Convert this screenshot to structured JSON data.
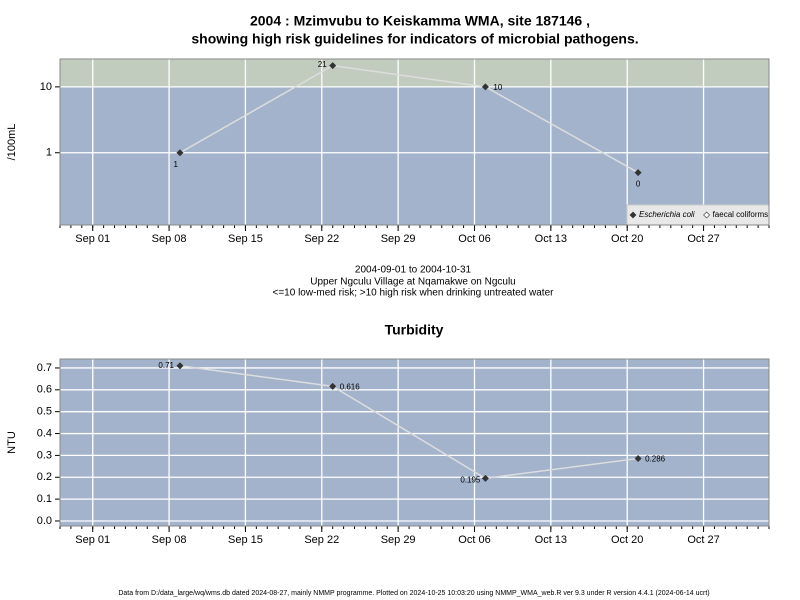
{
  "chart_data": [
    {
      "type": "line",
      "title": "2004 : Mzimvubu to Keiskamma WMA, site 187146 ,",
      "subtitle": "showing high risk guidelines for indicators of microbial pathogens.",
      "y_label": "/100mL",
      "log_scale": true,
      "ylim": [
        0.08,
        26.5
      ],
      "yticks": [
        1,
        10
      ],
      "threshold": 10,
      "below_color": "#a3b3cc",
      "above_color": "#c1ccbf",
      "grid": true,
      "xlim": [
        "2004-08-29",
        "2004-11-02"
      ],
      "xticks": [
        {
          "value": "2004-09-01",
          "label": "Sep 01"
        },
        {
          "value": "2004-09-08",
          "label": "Sep 08"
        },
        {
          "value": "2004-09-15",
          "label": "Sep 15"
        },
        {
          "value": "2004-09-22",
          "label": "Sep 22"
        },
        {
          "value": "2004-09-29",
          "label": "Sep 29"
        },
        {
          "value": "2004-10-06",
          "label": "Oct 06"
        },
        {
          "value": "2004-10-13",
          "label": "Oct 13"
        },
        {
          "value": "2004-10-20",
          "label": "Oct 20"
        },
        {
          "value": "2004-10-27",
          "label": "Oct 27"
        }
      ],
      "x": [
        "2004-09-09",
        "2004-09-23",
        "2004-10-07",
        "2004-10-21"
      ],
      "legend": "bottom right",
      "series": [
        {
          "name": "Escherichia coli",
          "color": "#dddddd",
          "values": [
            1,
            21,
            10,
            0.5
          ],
          "value_labels": [
            "1",
            "21",
            "10",
            "0"
          ]
        },
        {
          "name": "faecal coliforms",
          "color": "#dddddd",
          "values": [
            null,
            null,
            null,
            null
          ]
        }
      ],
      "notes": [
        "2004-09-01 to 2004-10-31",
        "Upper Ngculu Village at Nqamakwe on Ngculu",
        "<=10 low-med risk; >10 high risk when drinking untreated water"
      ]
    },
    {
      "type": "line",
      "title": "Turbidity",
      "y_label": "NTU",
      "log_scale": false,
      "ylim": [
        -0.023,
        0.741
      ],
      "yticks": [
        {
          "value": 0,
          "label": "0.0"
        },
        0.1,
        0.2,
        0.3,
        0.4,
        0.5,
        0.6,
        0.7
      ],
      "below_color": "#a3b3cc",
      "grid": true,
      "xlim": [
        "2004-08-29",
        "2004-11-02"
      ],
      "xticks": [
        {
          "value": "2004-09-01",
          "label": "Sep 01"
        },
        {
          "value": "2004-09-08",
          "label": "Sep 08"
        },
        {
          "value": "2004-09-15",
          "label": "Sep 15"
        },
        {
          "value": "2004-09-22",
          "label": "Sep 22"
        },
        {
          "value": "2004-09-29",
          "label": "Sep 29"
        },
        {
          "value": "2004-10-06",
          "label": "Oct 06"
        },
        {
          "value": "2004-10-13",
          "label": "Oct 13"
        },
        {
          "value": "2004-10-20",
          "label": "Oct 20"
        },
        {
          "value": "2004-10-27",
          "label": "Oct 27"
        }
      ],
      "x": [
        "2004-09-09",
        "2004-09-23",
        "2004-10-07",
        "2004-10-21"
      ],
      "series": [
        {
          "name": "Turbidity",
          "color": "#dddddd",
          "values": [
            0.71,
            0.616,
            0.195,
            0.286
          ]
        }
      ]
    }
  ],
  "footer": "Data from D:/data_large/wq/wms.db dated 2024-08-27, mainly NMMP programme. Plotted on 2024-10-25 10:03:20 using NMMP_WMA_web.R ver 9.3 under R version 4.4.1 (2024-06-14 ucrt)"
}
